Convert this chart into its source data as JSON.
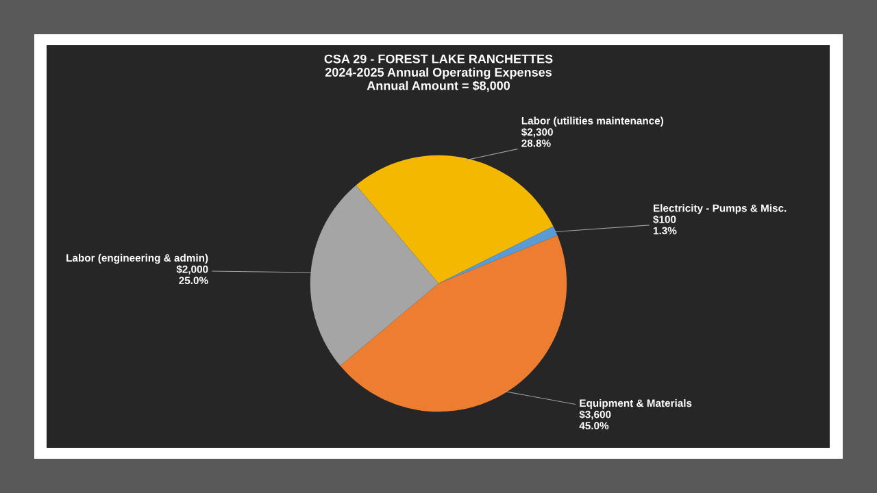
{
  "chart_data": {
    "type": "pie",
    "title": "CSA 29 - FOREST LAKE RANCHETTES\n2024-2025 Annual Operating Expenses\nAnnual Amount = $8,000",
    "categories": [
      "Labor (utilities maintenance)",
      "Electricity - Pumps & Misc.",
      "Equipment & Materials",
      "Labor (engineering & admin)"
    ],
    "values": [
      2300,
      100,
      3600,
      2000
    ],
    "colors": [
      "#f5b800",
      "#5b9bd5",
      "#ed7d31",
      "#a5a5a5"
    ],
    "value_labels": [
      "$2,300\n28.8%",
      "$100\n1.3%",
      "$3,600\n45.0%",
      "$2,000\n25.0%"
    ],
    "legend": false
  }
}
